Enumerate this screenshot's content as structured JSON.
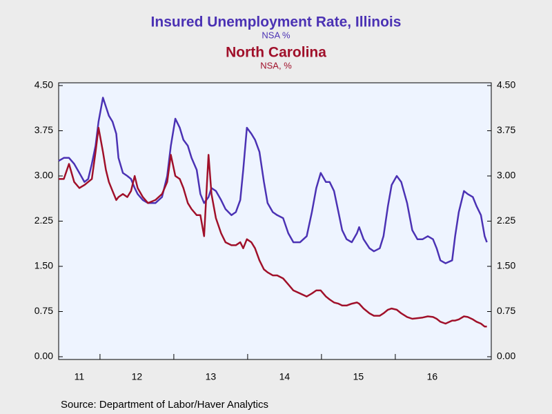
{
  "chart_data": {
    "type": "line",
    "x": [
      2011.44,
      2011.51,
      2011.58,
      2011.65,
      2011.72,
      2011.79,
      2011.84,
      2011.89,
      2011.94,
      2011.98,
      2012.04,
      2012.08,
      2012.12,
      2012.17,
      2012.22,
      2012.25,
      2012.31,
      2012.37,
      2012.42,
      2012.47,
      2012.51,
      2012.58,
      2012.65,
      2012.75,
      2012.84,
      2012.91,
      2012.96,
      2013.02,
      2013.08,
      2013.13,
      2013.19,
      2013.24,
      2013.31,
      2013.36,
      2013.41,
      2013.47,
      2013.51,
      2013.57,
      2013.64,
      2013.7,
      2013.78,
      2013.84,
      2013.9,
      2013.94,
      2013.99,
      2014.05,
      2014.1,
      2014.16,
      2014.22,
      2014.27,
      2014.34,
      2014.4,
      2014.48,
      2014.55,
      2014.62,
      2014.71,
      2014.8,
      2014.87,
      2014.93,
      2014.99,
      2015.06,
      2015.11,
      2015.17,
      2015.23,
      2015.28,
      2015.34,
      2015.41,
      2015.48,
      2015.51,
      2015.57,
      2015.65,
      2015.71,
      2015.79,
      2015.84,
      2015.9,
      2015.95,
      2016.02,
      2016.08,
      2016.16,
      2016.23,
      2016.3,
      2016.37,
      2016.44,
      2016.51,
      2016.56,
      2016.61,
      2016.68,
      2016.77,
      2016.81,
      2016.86,
      2016.93,
      2016.98,
      2017.05,
      2017.1,
      2017.16,
      2017.21,
      2017.24
    ],
    "series": [
      {
        "name": "Insured Unemployment Rate, Illinois",
        "unit": "NSA %",
        "color": "#4b32b4",
        "values": [
          3.25,
          3.3,
          3.3,
          3.2,
          3.05,
          2.9,
          2.95,
          3.2,
          3.5,
          3.9,
          4.3,
          4.15,
          4.0,
          3.9,
          3.7,
          3.3,
          3.05,
          3.0,
          2.95,
          2.8,
          2.7,
          2.6,
          2.55,
          2.55,
          2.65,
          3.0,
          3.5,
          3.95,
          3.8,
          3.6,
          3.5,
          3.3,
          3.1,
          2.7,
          2.55,
          2.65,
          2.8,
          2.75,
          2.6,
          2.45,
          2.35,
          2.4,
          2.6,
          3.1,
          3.8,
          3.7,
          3.6,
          3.4,
          2.9,
          2.55,
          2.4,
          2.35,
          2.3,
          2.05,
          1.9,
          1.9,
          2.0,
          2.4,
          2.8,
          3.05,
          2.9,
          2.9,
          2.75,
          2.4,
          2.1,
          1.95,
          1.9,
          2.05,
          2.15,
          1.95,
          1.8,
          1.75,
          1.8,
          2.0,
          2.5,
          2.85,
          3.0,
          2.9,
          2.55,
          2.1,
          1.95,
          1.95,
          2.0,
          1.95,
          1.8,
          1.6,
          1.55,
          1.6,
          2.0,
          2.4,
          2.75,
          2.7,
          2.65,
          2.5,
          2.35,
          2.0,
          1.9
        ]
      },
      {
        "name": "North Carolina",
        "unit": "NSA, %",
        "color": "#a0102a",
        "values": [
          2.95,
          2.95,
          3.2,
          2.9,
          2.8,
          2.85,
          2.9,
          2.95,
          3.4,
          3.8,
          3.4,
          3.1,
          2.9,
          2.75,
          2.6,
          2.65,
          2.7,
          2.65,
          2.75,
          3.0,
          2.8,
          2.65,
          2.55,
          2.6,
          2.7,
          2.9,
          3.35,
          3.0,
          2.95,
          2.8,
          2.55,
          2.45,
          2.35,
          2.35,
          2.0,
          3.35,
          2.7,
          2.3,
          2.05,
          1.9,
          1.85,
          1.85,
          1.9,
          1.8,
          1.95,
          1.9,
          1.8,
          1.6,
          1.45,
          1.4,
          1.35,
          1.35,
          1.3,
          1.2,
          1.1,
          1.05,
          1.0,
          1.05,
          1.1,
          1.1,
          1.0,
          0.95,
          0.9,
          0.88,
          0.85,
          0.85,
          0.88,
          0.9,
          0.88,
          0.8,
          0.72,
          0.68,
          0.68,
          0.72,
          0.78,
          0.8,
          0.78,
          0.72,
          0.66,
          0.63,
          0.64,
          0.65,
          0.67,
          0.66,
          0.63,
          0.58,
          0.55,
          0.6,
          0.6,
          0.62,
          0.67,
          0.66,
          0.62,
          0.58,
          0.55,
          0.5,
          0.5
        ]
      }
    ],
    "xlim": [
      2011.44,
      2017.3
    ],
    "xticks": [
      {
        "value": 2011,
        "label": "11"
      },
      {
        "value": 2012,
        "label": "12"
      },
      {
        "value": 2013,
        "label": "13"
      },
      {
        "value": 2014,
        "label": "14"
      },
      {
        "value": 2015,
        "label": "15"
      },
      {
        "value": 2016,
        "label": "16"
      }
    ],
    "ylim": [
      0,
      4.5
    ],
    "yticks": [
      {
        "value": 0,
        "label": "0.00"
      },
      {
        "value": 0.75,
        "label": "0.75"
      },
      {
        "value": 1.5,
        "label": "1.50"
      },
      {
        "value": 2.25,
        "label": "2.25"
      },
      {
        "value": 3,
        "label": "3.00"
      },
      {
        "value": 3.75,
        "label": "3.75"
      },
      {
        "value": 4.5,
        "label": "4.50"
      }
    ],
    "y2lim": [
      0,
      4.5
    ],
    "y2ticks": [
      {
        "value": 0,
        "label": "0.00"
      },
      {
        "value": 0.75,
        "label": "0.75"
      },
      {
        "value": 1.5,
        "label": "1.50"
      },
      {
        "value": 2.25,
        "label": "2.25"
      },
      {
        "value": 3,
        "label": "3.00"
      },
      {
        "value": 3.75,
        "label": "3.75"
      },
      {
        "value": 4.5,
        "label": "4.50"
      }
    ],
    "source": "Source:  Department of Labor/Haver Analytics"
  }
}
